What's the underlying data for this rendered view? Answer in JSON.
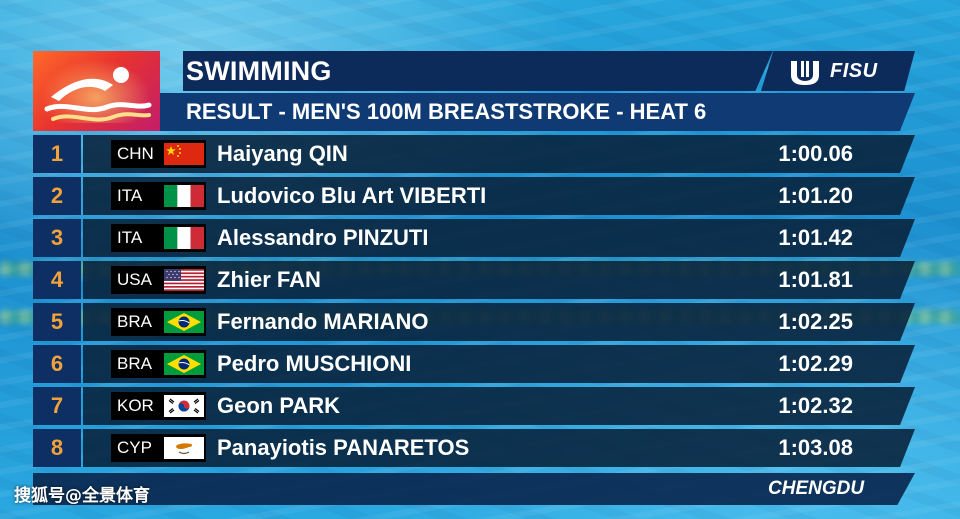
{
  "header": {
    "title": "SWIMMING",
    "subtitle": "RESULT - MEN'S 100M BREASTSTROKE - HEAT 6",
    "org_logo_text": "FISU"
  },
  "results": [
    {
      "rank": "1",
      "country": "CHN",
      "flag": "chn-flag",
      "name": "Haiyang QIN",
      "time": "1:00.06"
    },
    {
      "rank": "2",
      "country": "ITA",
      "flag": "ita-flag",
      "name": "Ludovico Blu Art VIBERTI",
      "time": "1:01.20"
    },
    {
      "rank": "3",
      "country": "ITA",
      "flag": "ita-flag",
      "name": "Alessandro PINZUTI",
      "time": "1:01.42"
    },
    {
      "rank": "4",
      "country": "USA",
      "flag": "usa-flag",
      "name": "Zhier FAN",
      "time": "1:01.81"
    },
    {
      "rank": "5",
      "country": "BRA",
      "flag": "bra-flag",
      "name": "Fernando MARIANO",
      "time": "1:02.25"
    },
    {
      "rank": "6",
      "country": "BRA",
      "flag": "bra-flag",
      "name": "Pedro MUSCHIONI",
      "time": "1:02.29"
    },
    {
      "rank": "7",
      "country": "KOR",
      "flag": "kor-flag",
      "name": "Geon PARK",
      "time": "1:02.32"
    },
    {
      "rank": "8",
      "country": "CYP",
      "flag": "cyp-flag",
      "name": "Panayiotis PANARETOS",
      "time": "1:03.08"
    }
  ],
  "footer": {
    "location": "CHENGDU"
  },
  "watermark": "搜狐号@全景体育",
  "colors": {
    "rank_text": "#f2a23a",
    "title_bar": "#0d2b5a",
    "subtitle_bar": "#103a74",
    "row_bar": "#08213a",
    "rank_box": "#0e2f63"
  }
}
